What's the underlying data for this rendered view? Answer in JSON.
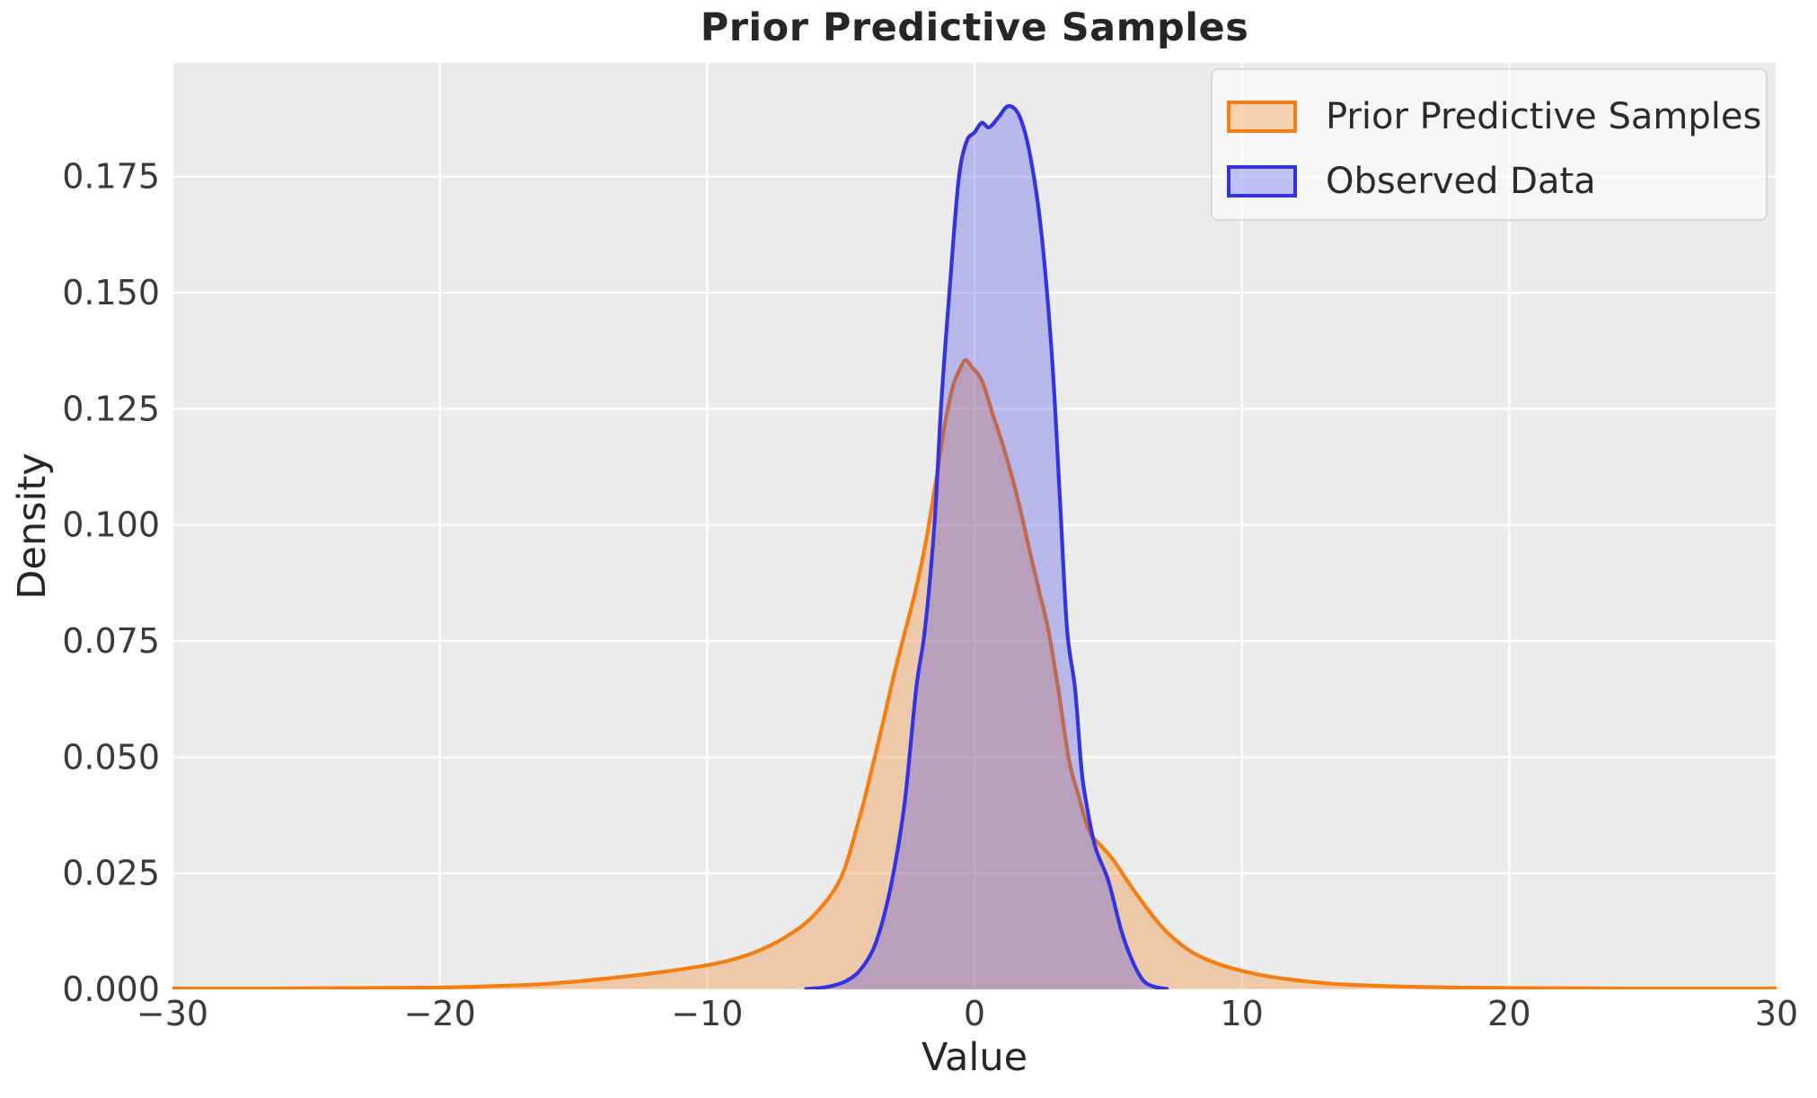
{
  "page": {
    "title": "Prior Predictive Samples"
  },
  "axes": {
    "xlabel": "Value",
    "ylabel": "Density"
  },
  "legend": {
    "position": "upper right",
    "items": [
      {
        "label": "Prior Predictive Samples",
        "line_color": "#f57d11",
        "fill_color": "rgba(246,124,16,0.30)"
      },
      {
        "label": "Observed Data",
        "line_color": "#3333e0",
        "fill_color": "rgba(63,63,230,0.30)"
      }
    ]
  },
  "style": {
    "page_bg": "#ffffff",
    "plot_bg": "#ebebeb",
    "grid_color": "#ffffff",
    "tick_color": "#3a3a3a",
    "title_color": "#262626",
    "accent_orange": "#f57d11",
    "accent_blue": "#3333e0"
  },
  "chart_data": {
    "type": "area",
    "title": "Prior Predictive Samples",
    "xlabel": "Value",
    "ylabel": "Density",
    "xlim": [
      -30,
      30
    ],
    "ylim": [
      0,
      0.1995
    ],
    "grid": true,
    "legend_position": "upper right",
    "xtick_values": [
      -30,
      -20,
      -10,
      0,
      10,
      20,
      30
    ],
    "xtick_labels": [
      "−30",
      "−20",
      "−10",
      "0",
      "10",
      "20",
      "30"
    ],
    "ytick_values": [
      0,
      0.025,
      0.05,
      0.075,
      0.1,
      0.125,
      0.15,
      0.175
    ],
    "ytick_labels": [
      "0.000",
      "0.025",
      "0.050",
      "0.075",
      "0.100",
      "0.125",
      "0.150",
      "0.175"
    ],
    "series": [
      {
        "name": "Prior Predictive Samples",
        "kind": "kde-area",
        "line_color": "#f57d11",
        "fill_color": "rgba(246,124,16,0.30)",
        "points": [
          [
            -30,
            0.0002
          ],
          [
            -26,
            0.0002
          ],
          [
            -23,
            0.0003
          ],
          [
            -20,
            0.0004
          ],
          [
            -18,
            0.0007
          ],
          [
            -16,
            0.0012
          ],
          [
            -14,
            0.0022
          ],
          [
            -12,
            0.0035
          ],
          [
            -10,
            0.0052
          ],
          [
            -9,
            0.0065
          ],
          [
            -8,
            0.0085
          ],
          [
            -7,
            0.0115
          ],
          [
            -6,
            0.016
          ],
          [
            -5,
            0.024
          ],
          [
            -4.3,
            0.037
          ],
          [
            -3.9,
            0.046
          ],
          [
            -3.4,
            0.058
          ],
          [
            -3,
            0.068
          ],
          [
            -2.6,
            0.077
          ],
          [
            -2.2,
            0.086
          ],
          [
            -1.8,
            0.097
          ],
          [
            -1.4,
            0.111
          ],
          [
            -1.1,
            0.122
          ],
          [
            -0.8,
            0.13
          ],
          [
            -0.55,
            0.1335
          ],
          [
            -0.34,
            0.1355
          ],
          [
            -0.1,
            0.134
          ],
          [
            0.28,
            0.131
          ],
          [
            0.7,
            0.1235
          ],
          [
            1.1,
            0.1165
          ],
          [
            1.6,
            0.106
          ],
          [
            2.1,
            0.0935
          ],
          [
            2.45,
            0.085
          ],
          [
            2.75,
            0.0777
          ],
          [
            3.13,
            0.0648
          ],
          [
            3.53,
            0.0495
          ],
          [
            3.9,
            0.0415
          ],
          [
            4.3,
            0.034
          ],
          [
            4.8,
            0.0305
          ],
          [
            5.2,
            0.0278
          ],
          [
            6,
            0.021
          ],
          [
            7,
            0.0135
          ],
          [
            8,
            0.0085
          ],
          [
            9,
            0.0057
          ],
          [
            10,
            0.004
          ],
          [
            11,
            0.0028
          ],
          [
            12,
            0.002
          ],
          [
            13,
            0.0014
          ],
          [
            14,
            0.001
          ],
          [
            16,
            0.0006
          ],
          [
            18,
            0.0004
          ],
          [
            20,
            0.0003
          ],
          [
            24,
            0.0002
          ],
          [
            27,
            0.0002
          ],
          [
            30,
            0.0002
          ]
        ]
      },
      {
        "name": "Observed Data",
        "kind": "kde-area",
        "line_color": "#3333e0",
        "fill_color": "rgba(63,63,230,0.30)",
        "points": [
          [
            -6.3,
            0.0001
          ],
          [
            -5.8,
            0.0003
          ],
          [
            -5.3,
            0.0008
          ],
          [
            -4.8,
            0.0018
          ],
          [
            -4.3,
            0.004
          ],
          [
            -3.8,
            0.0085
          ],
          [
            -3.4,
            0.0155
          ],
          [
            -3,
            0.026
          ],
          [
            -2.6,
            0.0408
          ],
          [
            -2.18,
            0.0648
          ],
          [
            -1.85,
            0.0777
          ],
          [
            -1.5,
            0.1
          ],
          [
            -1.24,
            0.1265
          ],
          [
            -0.94,
            0.15
          ],
          [
            -0.6,
            0.174
          ],
          [
            -0.3,
            0.1825
          ],
          [
            0,
            0.1845
          ],
          [
            0.27,
            0.1866
          ],
          [
            0.55,
            0.1856
          ],
          [
            0.9,
            0.1878
          ],
          [
            1.28,
            0.1902
          ],
          [
            1.7,
            0.1878
          ],
          [
            2.1,
            0.179
          ],
          [
            2.5,
            0.163
          ],
          [
            2.9,
            0.136
          ],
          [
            3.2,
            0.105
          ],
          [
            3.46,
            0.0777
          ],
          [
            3.76,
            0.0648
          ],
          [
            3.97,
            0.0495
          ],
          [
            4.1,
            0.0429
          ],
          [
            4.5,
            0.031
          ],
          [
            5,
            0.0235
          ],
          [
            5.5,
            0.0125
          ],
          [
            5.9,
            0.0062
          ],
          [
            6.3,
            0.002
          ],
          [
            6.7,
            0.0006
          ],
          [
            7.2,
            0.0001
          ]
        ]
      }
    ]
  }
}
